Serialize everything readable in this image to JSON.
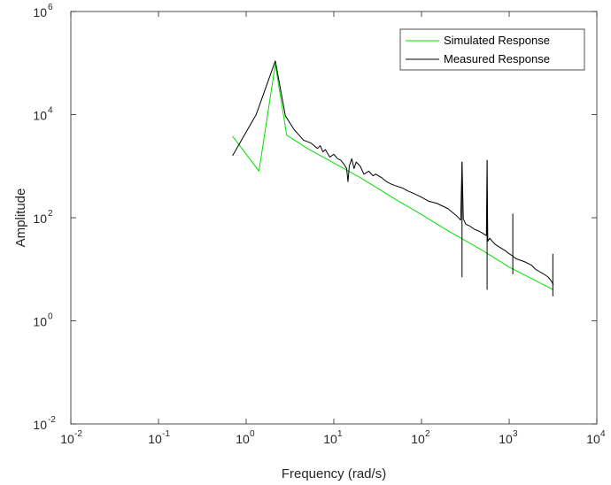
{
  "chart_data": {
    "type": "line",
    "title": "",
    "xlabel": "Frequency (rad/s)",
    "ylabel": "Amplitude",
    "xscale": "log",
    "yscale": "log",
    "xlim": [
      0.01,
      10000
    ],
    "ylim": [
      0.01,
      1000000
    ],
    "x_ticks": [
      {
        "base": "10",
        "exp": "-2",
        "value": 0.01
      },
      {
        "base": "10",
        "exp": "-1",
        "value": 0.1
      },
      {
        "base": "10",
        "exp": "0",
        "value": 1
      },
      {
        "base": "10",
        "exp": "1",
        "value": 10
      },
      {
        "base": "10",
        "exp": "2",
        "value": 100
      },
      {
        "base": "10",
        "exp": "3",
        "value": 1000
      },
      {
        "base": "10",
        "exp": "4",
        "value": 10000
      }
    ],
    "y_ticks": [
      {
        "base": "10",
        "exp": "-2",
        "value": 0.01
      },
      {
        "base": "10",
        "exp": "0",
        "value": 1
      },
      {
        "base": "10",
        "exp": "2",
        "value": 100
      },
      {
        "base": "10",
        "exp": "4",
        "value": 10000
      },
      {
        "base": "10",
        "exp": "6",
        "value": 1000000
      }
    ],
    "grid": false,
    "legend_position": "top-right",
    "series": [
      {
        "name": "Simulated Response",
        "color": "#00e000",
        "x": [
          0.7,
          1.4,
          2.15,
          2.9,
          5,
          10,
          20,
          50,
          100,
          200,
          500,
          1000,
          3200
        ],
        "y": [
          3800,
          800,
          95000,
          4000,
          2200,
          1150,
          600,
          230,
          115,
          56,
          23,
          11,
          4
        ]
      },
      {
        "name": "Measured Response",
        "color": "#000000",
        "x": [
          0.7,
          1.3,
          2.15,
          2.8,
          3.5,
          4.5,
          5.5,
          6.5,
          7,
          7.5,
          8,
          9,
          10,
          11,
          12,
          13,
          14,
          14.5,
          15,
          16,
          17,
          18,
          20,
          22,
          25,
          28,
          30,
          35,
          40,
          45,
          50,
          60,
          70,
          80,
          100,
          120,
          150,
          200,
          250,
          280,
          290,
          300,
          320,
          350,
          400,
          450,
          500,
          550,
          560,
          570,
          600,
          650,
          700,
          800,
          900,
          1000,
          1100,
          1200,
          1500,
          1800,
          2000,
          2500,
          2800,
          3000,
          3100,
          3200
        ],
        "y": [
          1600,
          10000,
          110000,
          9500,
          5200,
          3200,
          2800,
          2200,
          2500,
          1900,
          2100,
          1500,
          1700,
          1400,
          1300,
          1100,
          900,
          500,
          1000,
          1400,
          900,
          1200,
          1000,
          700,
          800,
          650,
          700,
          600,
          500,
          450,
          420,
          380,
          330,
          300,
          250,
          210,
          190,
          150,
          110,
          90,
          1200,
          95,
          75,
          70,
          60,
          55,
          50,
          45,
          1300,
          35,
          40,
          34,
          30,
          26,
          23,
          20,
          18,
          16,
          14,
          12,
          10,
          8,
          7,
          6,
          5.5,
          5
        ]
      }
    ],
    "spikes": [
      {
        "x": 290,
        "y_low": 7,
        "y_high": 1200
      },
      {
        "x": 560,
        "y_low": 4,
        "y_high": 1300
      },
      {
        "x": 1100,
        "y_low": 8,
        "y_high": 120
      },
      {
        "x": 3150,
        "y_low": 3,
        "y_high": 20
      }
    ]
  }
}
